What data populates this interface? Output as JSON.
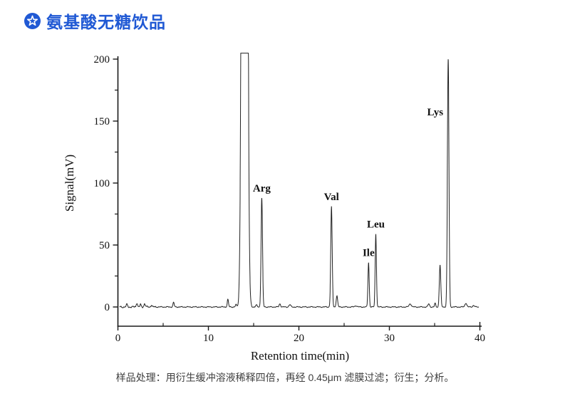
{
  "header": {
    "icon": "star-circle-icon",
    "title": "氨基酸无糖饮品",
    "accent_color": "#2059d4"
  },
  "caption": {
    "text": "样品处理：用衍生缓冲溶液稀释四倍，再经 0.45μm 滤膜过滤；衍生；分析。"
  },
  "chart_data": {
    "type": "line",
    "title": "",
    "xlabel": "Retention time(min)",
    "ylabel": "Signal(mV)",
    "xlim": [
      0,
      40.2
    ],
    "ylim": [
      -15.5,
      205
    ],
    "x_major_ticks": [
      0,
      10,
      20,
      30,
      40
    ],
    "x_minor_ticks": [
      5,
      15,
      25,
      35
    ],
    "y_major_ticks": [
      0,
      50,
      100,
      150,
      200
    ],
    "y_minor_ticks": [
      25,
      75,
      125,
      175
    ],
    "grid": false,
    "legend": false,
    "line_color": "#222222",
    "axis_color": "#1a1a1a",
    "clip_mV": 204.8,
    "peaks": [
      {
        "name": "reagent-front-peak",
        "label": "",
        "t_min": 14.0,
        "height_mV": 2000,
        "sigma_min": 0.2,
        "note": "off-scale, clipped above 200 mV"
      },
      {
        "name": "Arg",
        "label": "Arg",
        "t_min": 15.9,
        "height_mV": 88,
        "sigma_min": 0.08,
        "label_position": "above"
      },
      {
        "name": "Val",
        "label": "Val",
        "t_min": 23.6,
        "height_mV": 81,
        "sigma_min": 0.08,
        "label_position": "above"
      },
      {
        "name": "minor-peak-24",
        "label": "",
        "t_min": 24.2,
        "height_mV": 9,
        "sigma_min": 0.08
      },
      {
        "name": "Ile",
        "label": "Ile",
        "t_min": 27.7,
        "height_mV": 36,
        "sigma_min": 0.07,
        "label_position": "above"
      },
      {
        "name": "Leu",
        "label": "Leu",
        "t_min": 28.5,
        "height_mV": 59,
        "sigma_min": 0.07,
        "label_position": "above"
      },
      {
        "name": "minor-peak-356",
        "label": "",
        "t_min": 35.6,
        "height_mV": 34,
        "sigma_min": 0.08
      },
      {
        "name": "Lys",
        "label": "Lys",
        "t_min": 36.5,
        "height_mV": 200,
        "sigma_min": 0.085,
        "label_position": "left"
      }
    ],
    "baseline_features": [
      {
        "t_min": 1.0,
        "height_mV": 2.0,
        "sigma_min": 0.07
      },
      {
        "t_min": 2.1,
        "height_mV": 3.5,
        "sigma_min": 0.07
      },
      {
        "t_min": 2.5,
        "height_mV": 2.0,
        "sigma_min": 0.06
      },
      {
        "t_min": 2.95,
        "height_mV": 2.6,
        "sigma_min": 0.08
      },
      {
        "t_min": 3.7,
        "height_mV": 1.6,
        "sigma_min": 0.07
      },
      {
        "t_min": 6.15,
        "height_mV": 3.6,
        "sigma_min": 0.07
      },
      {
        "t_min": 12.15,
        "height_mV": 6.0,
        "sigma_min": 0.07
      },
      {
        "t_min": 13.05,
        "height_mV": 1.8,
        "sigma_min": 0.07
      },
      {
        "t_min": 15.3,
        "height_mV": 1.5,
        "sigma_min": 0.08
      },
      {
        "t_min": 17.9,
        "height_mV": 2.6,
        "sigma_min": 0.08
      },
      {
        "t_min": 19.0,
        "height_mV": 1.8,
        "sigma_min": 0.1
      },
      {
        "t_min": 26.3,
        "height_mV": 1.0,
        "sigma_min": 0.12
      },
      {
        "t_min": 32.3,
        "height_mV": 2.6,
        "sigma_min": 0.12
      },
      {
        "t_min": 34.35,
        "height_mV": 2.4,
        "sigma_min": 0.09
      },
      {
        "t_min": 35.05,
        "height_mV": 3.0,
        "sigma_min": 0.06
      },
      {
        "t_min": 38.45,
        "height_mV": 3.2,
        "sigma_min": 0.1
      },
      {
        "t_min": 39.3,
        "height_mV": 1.2,
        "sigma_min": 0.1
      }
    ]
  }
}
